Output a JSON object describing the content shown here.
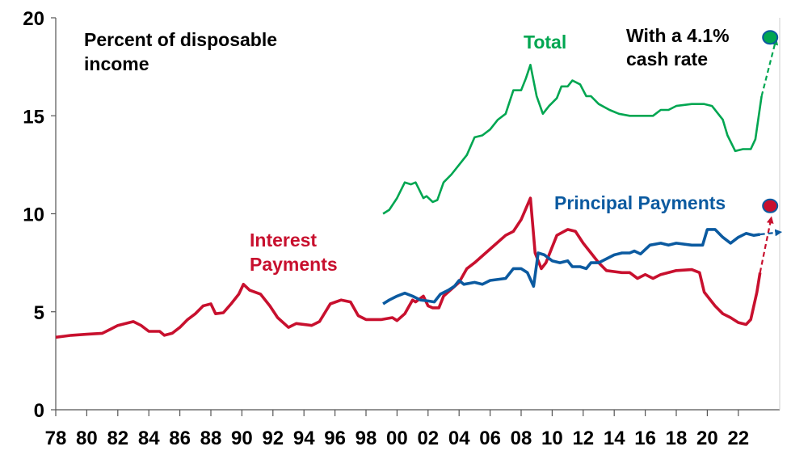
{
  "chart_data": {
    "type": "line",
    "ylabel": "Percent of disposable income",
    "ylim": [
      0,
      20
    ],
    "yticks": [
      "0",
      "5",
      "10",
      "15",
      "20"
    ],
    "xlim": [
      1978,
      2024.7
    ],
    "xticks": [
      "78",
      "80",
      "82",
      "84",
      "86",
      "88",
      "90",
      "92",
      "94",
      "96",
      "98",
      "00",
      "02",
      "04",
      "06",
      "08",
      "10",
      "12",
      "14",
      "16",
      "18",
      "20",
      "22"
    ],
    "grid": false,
    "annotation": "With a 4.1% cash rate",
    "series": [
      {
        "name": "Total",
        "color": "#00a651",
        "points": [
          [
            1999.1,
            10.0
          ],
          [
            1999.5,
            10.2
          ],
          [
            2000,
            10.8
          ],
          [
            2000.5,
            11.6
          ],
          [
            2000.9,
            11.5
          ],
          [
            2001.2,
            11.6
          ],
          [
            2001.7,
            10.8
          ],
          [
            2001.9,
            10.9
          ],
          [
            2002.3,
            10.6
          ],
          [
            2002.6,
            10.7
          ],
          [
            2003,
            11.6
          ],
          [
            2003.5,
            12.0
          ],
          [
            2004,
            12.5
          ],
          [
            2004.5,
            13.0
          ],
          [
            2005,
            13.9
          ],
          [
            2005.5,
            14.0
          ],
          [
            2006,
            14.3
          ],
          [
            2006.5,
            14.8
          ],
          [
            2007,
            15.1
          ],
          [
            2007.5,
            16.3
          ],
          [
            2008,
            16.3
          ],
          [
            2008.3,
            16.9
          ],
          [
            2008.6,
            17.6
          ],
          [
            2009,
            16.0
          ],
          [
            2009.4,
            15.1
          ],
          [
            2009.8,
            15.5
          ],
          [
            2010.3,
            15.9
          ],
          [
            2010.6,
            16.5
          ],
          [
            2011,
            16.5
          ],
          [
            2011.3,
            16.8
          ],
          [
            2011.8,
            16.6
          ],
          [
            2012.2,
            16.0
          ],
          [
            2012.5,
            16.0
          ],
          [
            2013,
            15.6
          ],
          [
            2013.7,
            15.3
          ],
          [
            2014.3,
            15.1
          ],
          [
            2015,
            15.0
          ],
          [
            2016,
            15.0
          ],
          [
            2016.5,
            15.0
          ],
          [
            2017,
            15.3
          ],
          [
            2017.5,
            15.3
          ],
          [
            2018,
            15.5
          ],
          [
            2019,
            15.6
          ],
          [
            2019.8,
            15.6
          ],
          [
            2020.3,
            15.5
          ],
          [
            2021,
            14.8
          ],
          [
            2021.3,
            14.0
          ],
          [
            2021.8,
            13.2
          ],
          [
            2022.3,
            13.3
          ],
          [
            2022.8,
            13.3
          ],
          [
            2023.1,
            13.8
          ],
          [
            2023.5,
            16.0
          ]
        ],
        "projection": [
          [
            2023.5,
            16.0
          ],
          [
            2024.4,
            18.8
          ]
        ],
        "projected_value": 19.0
      },
      {
        "name": "Principal Payments",
        "color": "#0b5aa0",
        "points": [
          [
            1999.1,
            5.4
          ],
          [
            1999.5,
            5.6
          ],
          [
            2000,
            5.8
          ],
          [
            2000.5,
            5.95
          ],
          [
            2001,
            5.8
          ],
          [
            2001.5,
            5.6
          ],
          [
            2002,
            5.55
          ],
          [
            2002.4,
            5.5
          ],
          [
            2002.8,
            5.9
          ],
          [
            2003.3,
            6.1
          ],
          [
            2003.7,
            6.3
          ],
          [
            2004,
            6.6
          ],
          [
            2004.3,
            6.4
          ],
          [
            2005,
            6.5
          ],
          [
            2005.5,
            6.4
          ],
          [
            2006,
            6.6
          ],
          [
            2007,
            6.7
          ],
          [
            2007.5,
            7.2
          ],
          [
            2008,
            7.2
          ],
          [
            2008.4,
            7.0
          ],
          [
            2008.8,
            6.3
          ],
          [
            2009.1,
            8.0
          ],
          [
            2009.5,
            7.9
          ],
          [
            2010,
            7.6
          ],
          [
            2010.5,
            7.5
          ],
          [
            2011,
            7.6
          ],
          [
            2011.3,
            7.3
          ],
          [
            2011.8,
            7.3
          ],
          [
            2012.2,
            7.2
          ],
          [
            2012.5,
            7.5
          ],
          [
            2013,
            7.5
          ],
          [
            2014,
            7.9
          ],
          [
            2014.5,
            8.0
          ],
          [
            2015,
            8.0
          ],
          [
            2015.3,
            8.1
          ],
          [
            2015.7,
            7.95
          ],
          [
            2016.3,
            8.4
          ],
          [
            2017,
            8.5
          ],
          [
            2017.5,
            8.4
          ],
          [
            2018,
            8.5
          ],
          [
            2019,
            8.4
          ],
          [
            2019.7,
            8.4
          ],
          [
            2020,
            9.2
          ],
          [
            2020.5,
            9.2
          ],
          [
            2021,
            8.8
          ],
          [
            2021.5,
            8.5
          ],
          [
            2022,
            8.8
          ],
          [
            2022.5,
            9.0
          ],
          [
            2023,
            8.9
          ],
          [
            2023.4,
            8.95
          ]
        ],
        "projection": [
          [
            2023.4,
            8.95
          ],
          [
            2024.6,
            9.05
          ]
        ]
      },
      {
        "name": "Interest Payments",
        "color": "#c8102e",
        "points": [
          [
            1978,
            3.7
          ],
          [
            1978.5,
            3.75
          ],
          [
            1979,
            3.8
          ],
          [
            1980,
            3.85
          ],
          [
            1981,
            3.9
          ],
          [
            1981.5,
            4.1
          ],
          [
            1982,
            4.3
          ],
          [
            1983,
            4.5
          ],
          [
            1983.5,
            4.3
          ],
          [
            1984,
            4.0
          ],
          [
            1984.7,
            4.0
          ],
          [
            1985,
            3.8
          ],
          [
            1985.5,
            3.9
          ],
          [
            1986,
            4.2
          ],
          [
            1986.5,
            4.6
          ],
          [
            1987,
            4.9
          ],
          [
            1987.5,
            5.3
          ],
          [
            1988,
            5.4
          ],
          [
            1988.3,
            4.9
          ],
          [
            1988.8,
            4.95
          ],
          [
            1989.3,
            5.4
          ],
          [
            1989.8,
            5.9
          ],
          [
            1990.1,
            6.4
          ],
          [
            1990.5,
            6.1
          ],
          [
            1991.2,
            5.9
          ],
          [
            1991.8,
            5.3
          ],
          [
            1992.3,
            4.7
          ],
          [
            1993,
            4.2
          ],
          [
            1993.5,
            4.4
          ],
          [
            1994.5,
            4.3
          ],
          [
            1995,
            4.5
          ],
          [
            1995.7,
            5.4
          ],
          [
            1996.4,
            5.6
          ],
          [
            1997,
            5.5
          ],
          [
            1997.5,
            4.8
          ],
          [
            1998,
            4.6
          ],
          [
            1999,
            4.6
          ],
          [
            1999.7,
            4.7
          ],
          [
            2000,
            4.55
          ],
          [
            2000.5,
            4.9
          ],
          [
            2001,
            5.6
          ],
          [
            2001.2,
            5.5
          ],
          [
            2001.7,
            5.8
          ],
          [
            2002,
            5.3
          ],
          [
            2002.3,
            5.2
          ],
          [
            2002.7,
            5.2
          ],
          [
            2003,
            5.8
          ],
          [
            2004,
            6.5
          ],
          [
            2004.5,
            7.2
          ],
          [
            2005,
            7.5
          ],
          [
            2006,
            8.2
          ],
          [
            2007,
            8.9
          ],
          [
            2007.5,
            9.1
          ],
          [
            2008,
            9.7
          ],
          [
            2008.6,
            10.8
          ],
          [
            2008.9,
            8.0
          ],
          [
            2009.3,
            7.2
          ],
          [
            2009.6,
            7.5
          ],
          [
            2010.3,
            8.9
          ],
          [
            2011,
            9.2
          ],
          [
            2011.5,
            9.1
          ],
          [
            2012,
            8.5
          ],
          [
            2012.5,
            8.0
          ],
          [
            2013,
            7.5
          ],
          [
            2013.5,
            7.1
          ],
          [
            2014.5,
            7.0
          ],
          [
            2015,
            7.0
          ],
          [
            2015.5,
            6.7
          ],
          [
            2016,
            6.9
          ],
          [
            2016.5,
            6.7
          ],
          [
            2017,
            6.9
          ],
          [
            2017.5,
            7.0
          ],
          [
            2018,
            7.1
          ],
          [
            2019,
            7.15
          ],
          [
            2019.5,
            7.0
          ],
          [
            2019.8,
            6.0
          ],
          [
            2020.5,
            5.3
          ],
          [
            2021,
            4.9
          ],
          [
            2021.5,
            4.7
          ],
          [
            2022,
            4.45
          ],
          [
            2022.5,
            4.35
          ],
          [
            2022.8,
            4.6
          ],
          [
            2023.2,
            6.0
          ],
          [
            2023.4,
            7.0
          ]
        ],
        "projection": [
          [
            2023.4,
            7.0
          ],
          [
            2024.1,
            9.7
          ]
        ],
        "projected_value": 10.4
      }
    ],
    "marker_outline": "#0b5aa0"
  },
  "labels": {
    "ylabel_line1": "Percent of disposable",
    "ylabel_line2": "income",
    "total": "Total",
    "cash_line1": "With a 4.1%",
    "cash_line2": "cash rate",
    "principal": "Principal Payments",
    "interest_line1": "Interest",
    "interest_line2": "Payments"
  }
}
